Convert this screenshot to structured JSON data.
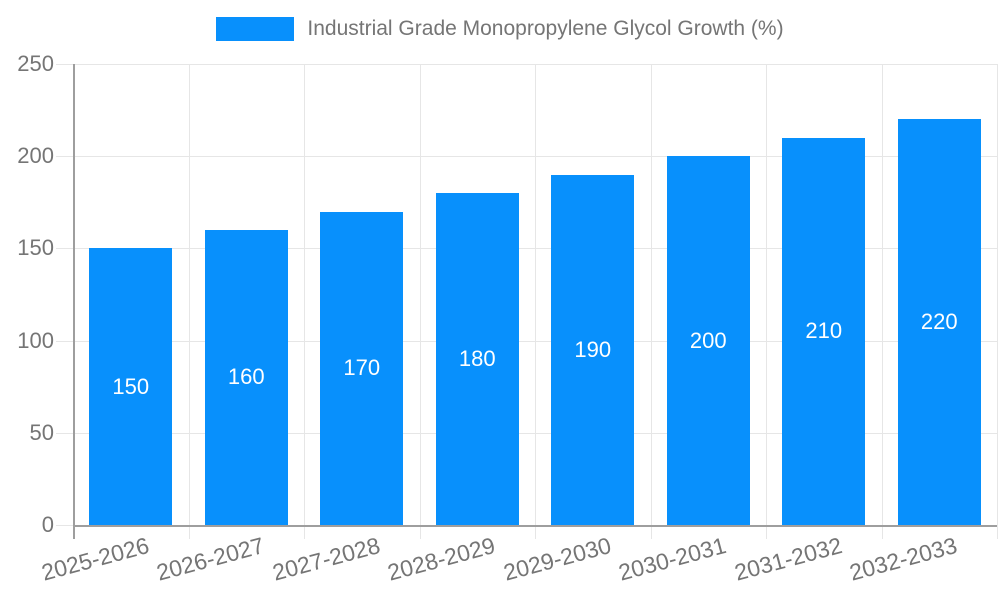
{
  "legend": {
    "label": "Industrial Grade Monopropylene Glycol Growth (%)"
  },
  "colors": {
    "bar": "#0890FC",
    "bar_label": "#FFFFFF",
    "axis_label": "#757575",
    "gridline": "#E6E6E6",
    "axis_line": "#9E9E9E",
    "background": "#FFFFFF"
  },
  "chart_data": {
    "type": "bar",
    "title": "Industrial Grade Monopropylene Glycol Growth (%)",
    "categories": [
      "2025-2026",
      "2026-2027",
      "2027-2028",
      "2028-2029",
      "2029-2030",
      "2030-2031",
      "2031-2032",
      "2032-2033"
    ],
    "values": [
      150,
      160,
      170,
      180,
      190,
      200,
      210,
      220
    ],
    "xlabel": "",
    "ylabel": "",
    "ylim": [
      0,
      250
    ],
    "yticks": [
      0,
      50,
      100,
      150,
      200,
      250
    ],
    "grid": true,
    "legend_position": "top",
    "bar_labels_visible": true,
    "x_tick_rotation_deg": -15
  }
}
